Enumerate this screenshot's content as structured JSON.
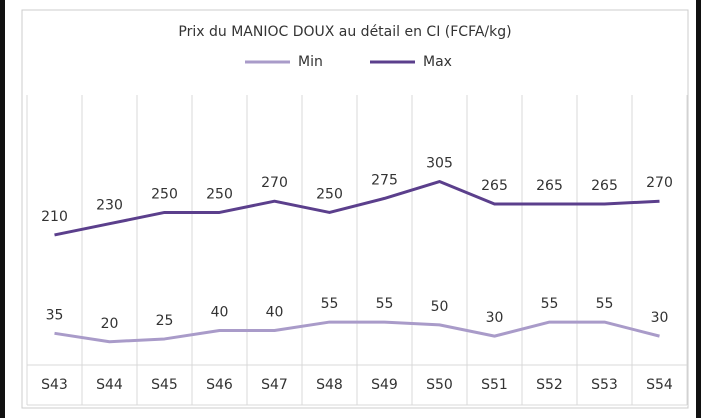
{
  "chart_data": {
    "type": "line",
    "title": "Prix du MANIOC DOUX  au détail en CI (FCFA/kg)",
    "categories": [
      "S43",
      "S44",
      "S45",
      "S46",
      "S47",
      "S48",
      "S49",
      "S50",
      "S51",
      "S52",
      "S53",
      "S54"
    ],
    "series": [
      {
        "name": "Min",
        "color": "#a99bc9",
        "values": [
          35,
          20,
          25,
          40,
          40,
          55,
          55,
          50,
          30,
          55,
          55,
          30
        ]
      },
      {
        "name": "Max",
        "color": "#5b3f8c",
        "values": [
          210,
          230,
          250,
          250,
          270,
          250,
          275,
          305,
          265,
          265,
          265,
          270
        ]
      }
    ],
    "ylim": [
      0,
      450
    ],
    "legend": "top"
  }
}
